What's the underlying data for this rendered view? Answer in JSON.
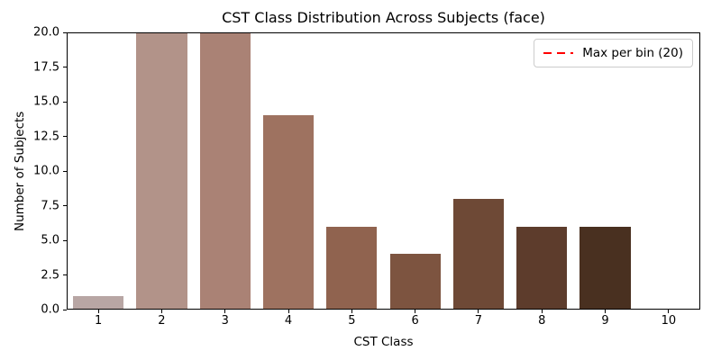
{
  "window": {
    "background": "#ffffff"
  },
  "chart_data": {
    "type": "bar",
    "title": "CST Class Distribution Across Subjects (face)",
    "xlabel": "CST Class",
    "ylabel": "Number of Subjects",
    "categories": [
      "1",
      "2",
      "3",
      "4",
      "5",
      "6",
      "7",
      "8",
      "9",
      "10"
    ],
    "values": [
      1,
      20,
      20,
      14,
      6,
      4,
      8,
      6,
      6,
      0
    ],
    "bar_colors": [
      "#b8a6a4",
      "#b29389",
      "#aa8275",
      "#9e7260",
      "#90634f",
      "#7d5440",
      "#6e4936",
      "#5d3c2c",
      "#493020",
      "#3a2317"
    ],
    "ylim": [
      0,
      20
    ],
    "yticks": [
      "0.0",
      "2.5",
      "5.0",
      "7.5",
      "10.0",
      "12.5",
      "15.0",
      "17.5",
      "20.0"
    ],
    "grid": false,
    "bar_width_ratio": 0.8,
    "legend": {
      "position": "upper right",
      "entries": [
        {
          "label": "Max per bin (20)",
          "color": "#ff0000",
          "style": "dashed"
        }
      ]
    },
    "annotations": [
      {
        "type": "hline",
        "y": 20,
        "color": "#ff0000",
        "style": "dashed"
      }
    ]
  },
  "style": {
    "axis_color": "#000000",
    "legend_border": "#cccccc",
    "legend_bg": "#ffffff"
  }
}
